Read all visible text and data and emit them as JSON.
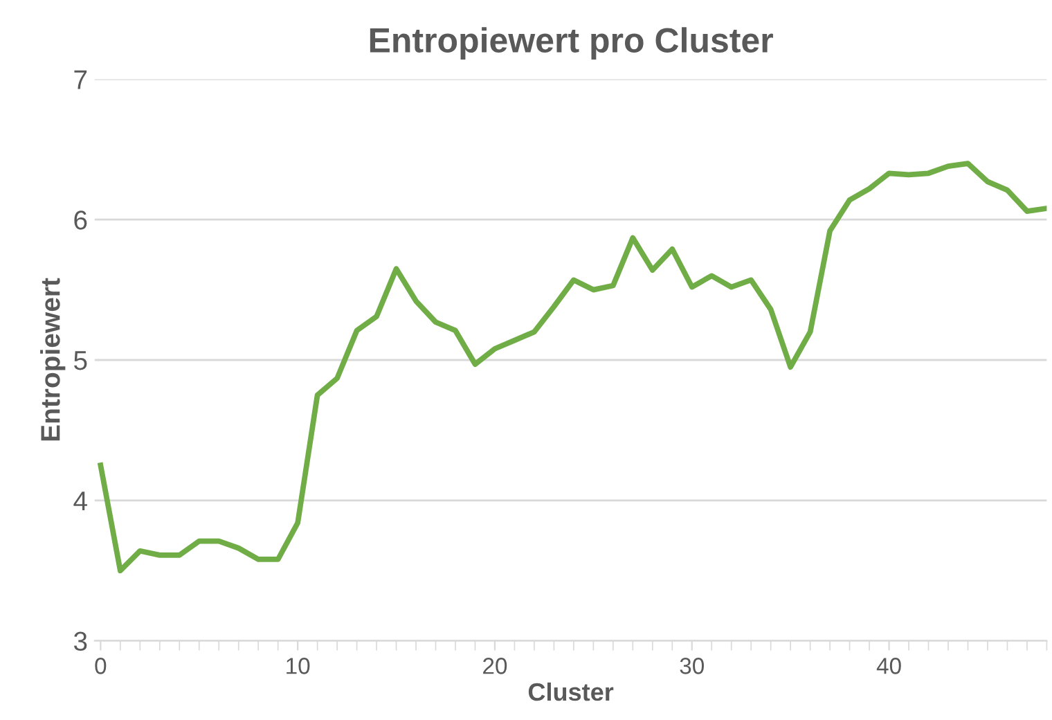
{
  "chart_data": {
    "type": "line",
    "title": "Entropiewert pro Cluster",
    "xlabel": "Cluster",
    "ylabel": "Entropiewert",
    "x": [
      0,
      1,
      2,
      3,
      4,
      5,
      6,
      7,
      8,
      9,
      10,
      11,
      12,
      13,
      14,
      15,
      16,
      17,
      18,
      19,
      20,
      21,
      22,
      23,
      24,
      25,
      26,
      27,
      28,
      29,
      30,
      31,
      32,
      33,
      34,
      35,
      36,
      37,
      38,
      39,
      40,
      41,
      42,
      43,
      44,
      45,
      46,
      47,
      48
    ],
    "series": [
      {
        "color": "#70ad47",
        "values": [
          4.25,
          3.5,
          3.64,
          3.61,
          3.61,
          3.71,
          3.71,
          3.66,
          3.58,
          3.58,
          3.84,
          4.75,
          4.87,
          5.21,
          5.31,
          5.65,
          5.42,
          5.27,
          5.21,
          4.97,
          5.08,
          5.14,
          5.2,
          5.38,
          5.57,
          5.5,
          5.53,
          5.87,
          5.64,
          5.79,
          5.52,
          5.6,
          5.52,
          5.57,
          5.36,
          4.95,
          5.2,
          5.92,
          6.14,
          6.22,
          6.33,
          6.32,
          6.33,
          6.38,
          6.4,
          6.27,
          6.21,
          6.06,
          6.08
        ]
      }
    ],
    "xlim": [
      -0.3,
      48
    ],
    "ylim": [
      3,
      7
    ],
    "xticks": [
      0,
      10,
      20,
      30,
      40
    ],
    "yticks": [
      3,
      4,
      5,
      6,
      7
    ],
    "grid": "y",
    "legend": false,
    "marker": "none",
    "line_style": "solid"
  }
}
